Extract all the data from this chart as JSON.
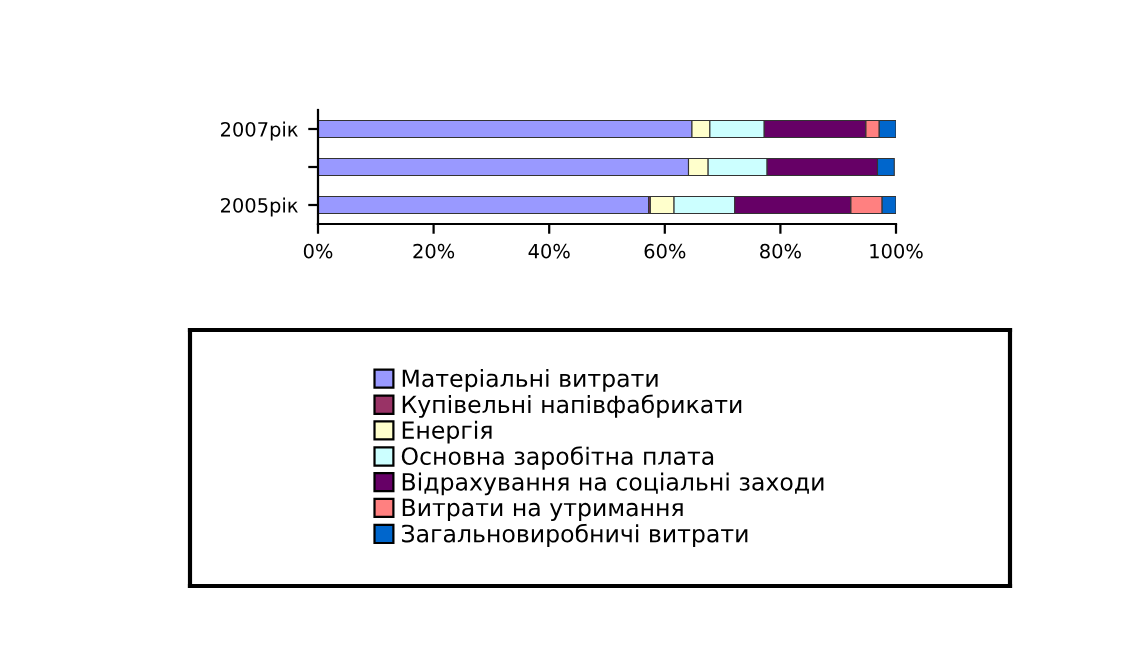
{
  "chart_data": {
    "type": "bar",
    "orientation": "horizontal",
    "stacked": true,
    "categories": [
      "2007рік",
      null,
      "2005рік"
    ],
    "series": [
      {
        "name": "Матеріальні витрати",
        "color": "#9999ff",
        "values": [
          64.7,
          64.1,
          57.2
        ]
      },
      {
        "name": "Купівельні напівфабрикати",
        "color": "#993366",
        "values": [
          null,
          null,
          0.3
        ]
      },
      {
        "name": "Енергія",
        "color": "#ffffcc",
        "values": [
          3.1,
          3.4,
          4.1
        ]
      },
      {
        "name": "Основна заробітна плата",
        "color": "#ccffff",
        "values": [
          9.4,
          10.2,
          10.5
        ]
      },
      {
        "name": "Відрахування на соціальні заходи",
        "color": "#660066",
        "values": [
          17.6,
          19.1,
          20.1
        ]
      },
      {
        "name": "Витрати на утримання",
        "color": "#ff8080",
        "values": [
          2.3,
          null,
          5.4
        ]
      },
      {
        "name": "Загальновиробничі витрати",
        "color": "#0066cc",
        "values": [
          2.9,
          2.9,
          2.4
        ]
      }
    ],
    "xlim": [
      0,
      100
    ],
    "xticks": [
      {
        "value": 0,
        "label": "0%"
      },
      {
        "value": 20,
        "label": "20%"
      },
      {
        "value": 40,
        "label": "40%"
      },
      {
        "value": 60,
        "label": "60%"
      },
      {
        "value": 80,
        "label": "80%"
      },
      {
        "value": 100,
        "label": "100%"
      }
    ],
    "grid": false,
    "legend": "bottom"
  }
}
